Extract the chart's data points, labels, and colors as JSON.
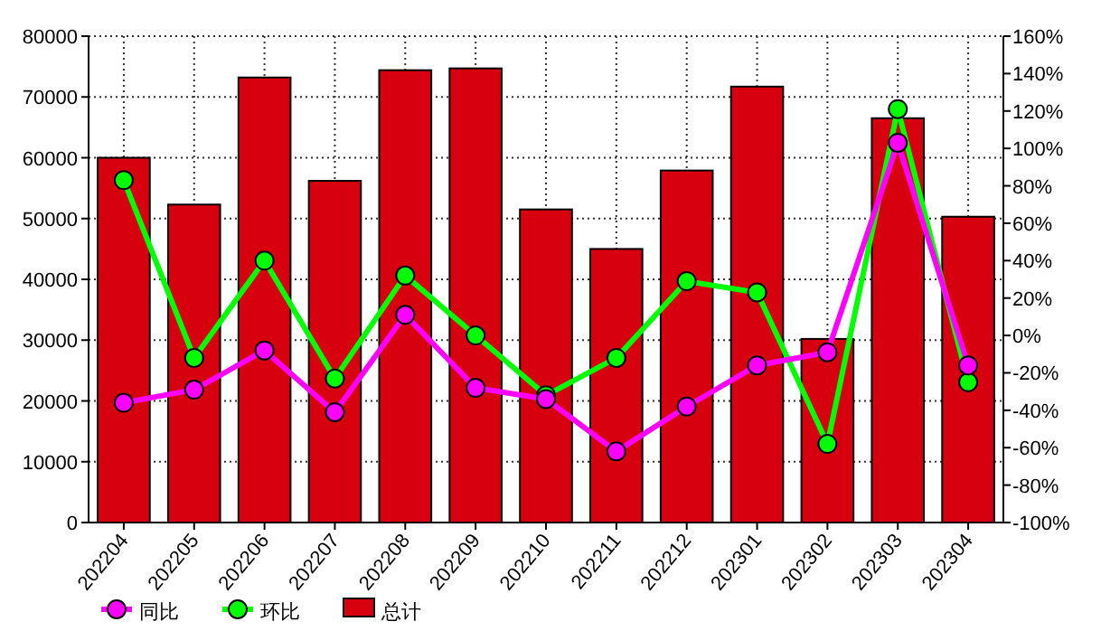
{
  "chart_data": {
    "type": "bar",
    "categories": [
      "202204",
      "202205",
      "202206",
      "202207",
      "202208",
      "202209",
      "202210",
      "202211",
      "202212",
      "202301",
      "202302",
      "202303",
      "202304"
    ],
    "series": [
      {
        "name": "同比",
        "type": "line",
        "axis": "y2",
        "color": "#ff00ff",
        "marker": "circle",
        "values": [
          -36,
          -29,
          -8,
          -41,
          11,
          -28,
          -34,
          -62,
          -38,
          -16,
          -9,
          103,
          -16
        ]
      },
      {
        "name": "环比",
        "type": "line",
        "axis": "y2",
        "color": "#00ff00",
        "marker": "circle",
        "values": [
          83,
          -12,
          40,
          -23,
          32,
          0,
          -32,
          -12,
          29,
          23,
          -58,
          121,
          -25
        ]
      },
      {
        "name": "总计",
        "color": "#d7000f",
        "values": [
          60000,
          52300,
          73200,
          56200,
          74400,
          74700,
          51500,
          45000,
          57900,
          71700,
          30200,
          66500,
          50300
        ]
      }
    ],
    "ylim": [
      0,
      80000
    ],
    "yticks": [
      0,
      10000,
      20000,
      30000,
      40000,
      50000,
      60000,
      70000,
      80000
    ],
    "y2lim": [
      -100,
      160
    ],
    "y2ticks": [
      {
        "value": -100,
        "label": "-100%"
      },
      {
        "value": -80,
        "label": "-80%"
      },
      {
        "value": -60,
        "label": "-60%"
      },
      {
        "value": -40,
        "label": "-40%"
      },
      {
        "value": -20,
        "label": "-20%"
      },
      {
        "value": 0,
        "label": "0%"
      },
      {
        "value": 20,
        "label": "20%"
      },
      {
        "value": 40,
        "label": "40%"
      },
      {
        "value": 60,
        "label": "60%"
      },
      {
        "value": 80,
        "label": "80%"
      },
      {
        "value": 100,
        "label": "100%"
      },
      {
        "value": 120,
        "label": "120%"
      },
      {
        "value": 140,
        "label": "140%"
      },
      {
        "value": 160,
        "label": "160%"
      }
    ],
    "grid": true,
    "legend": "bottom left"
  }
}
